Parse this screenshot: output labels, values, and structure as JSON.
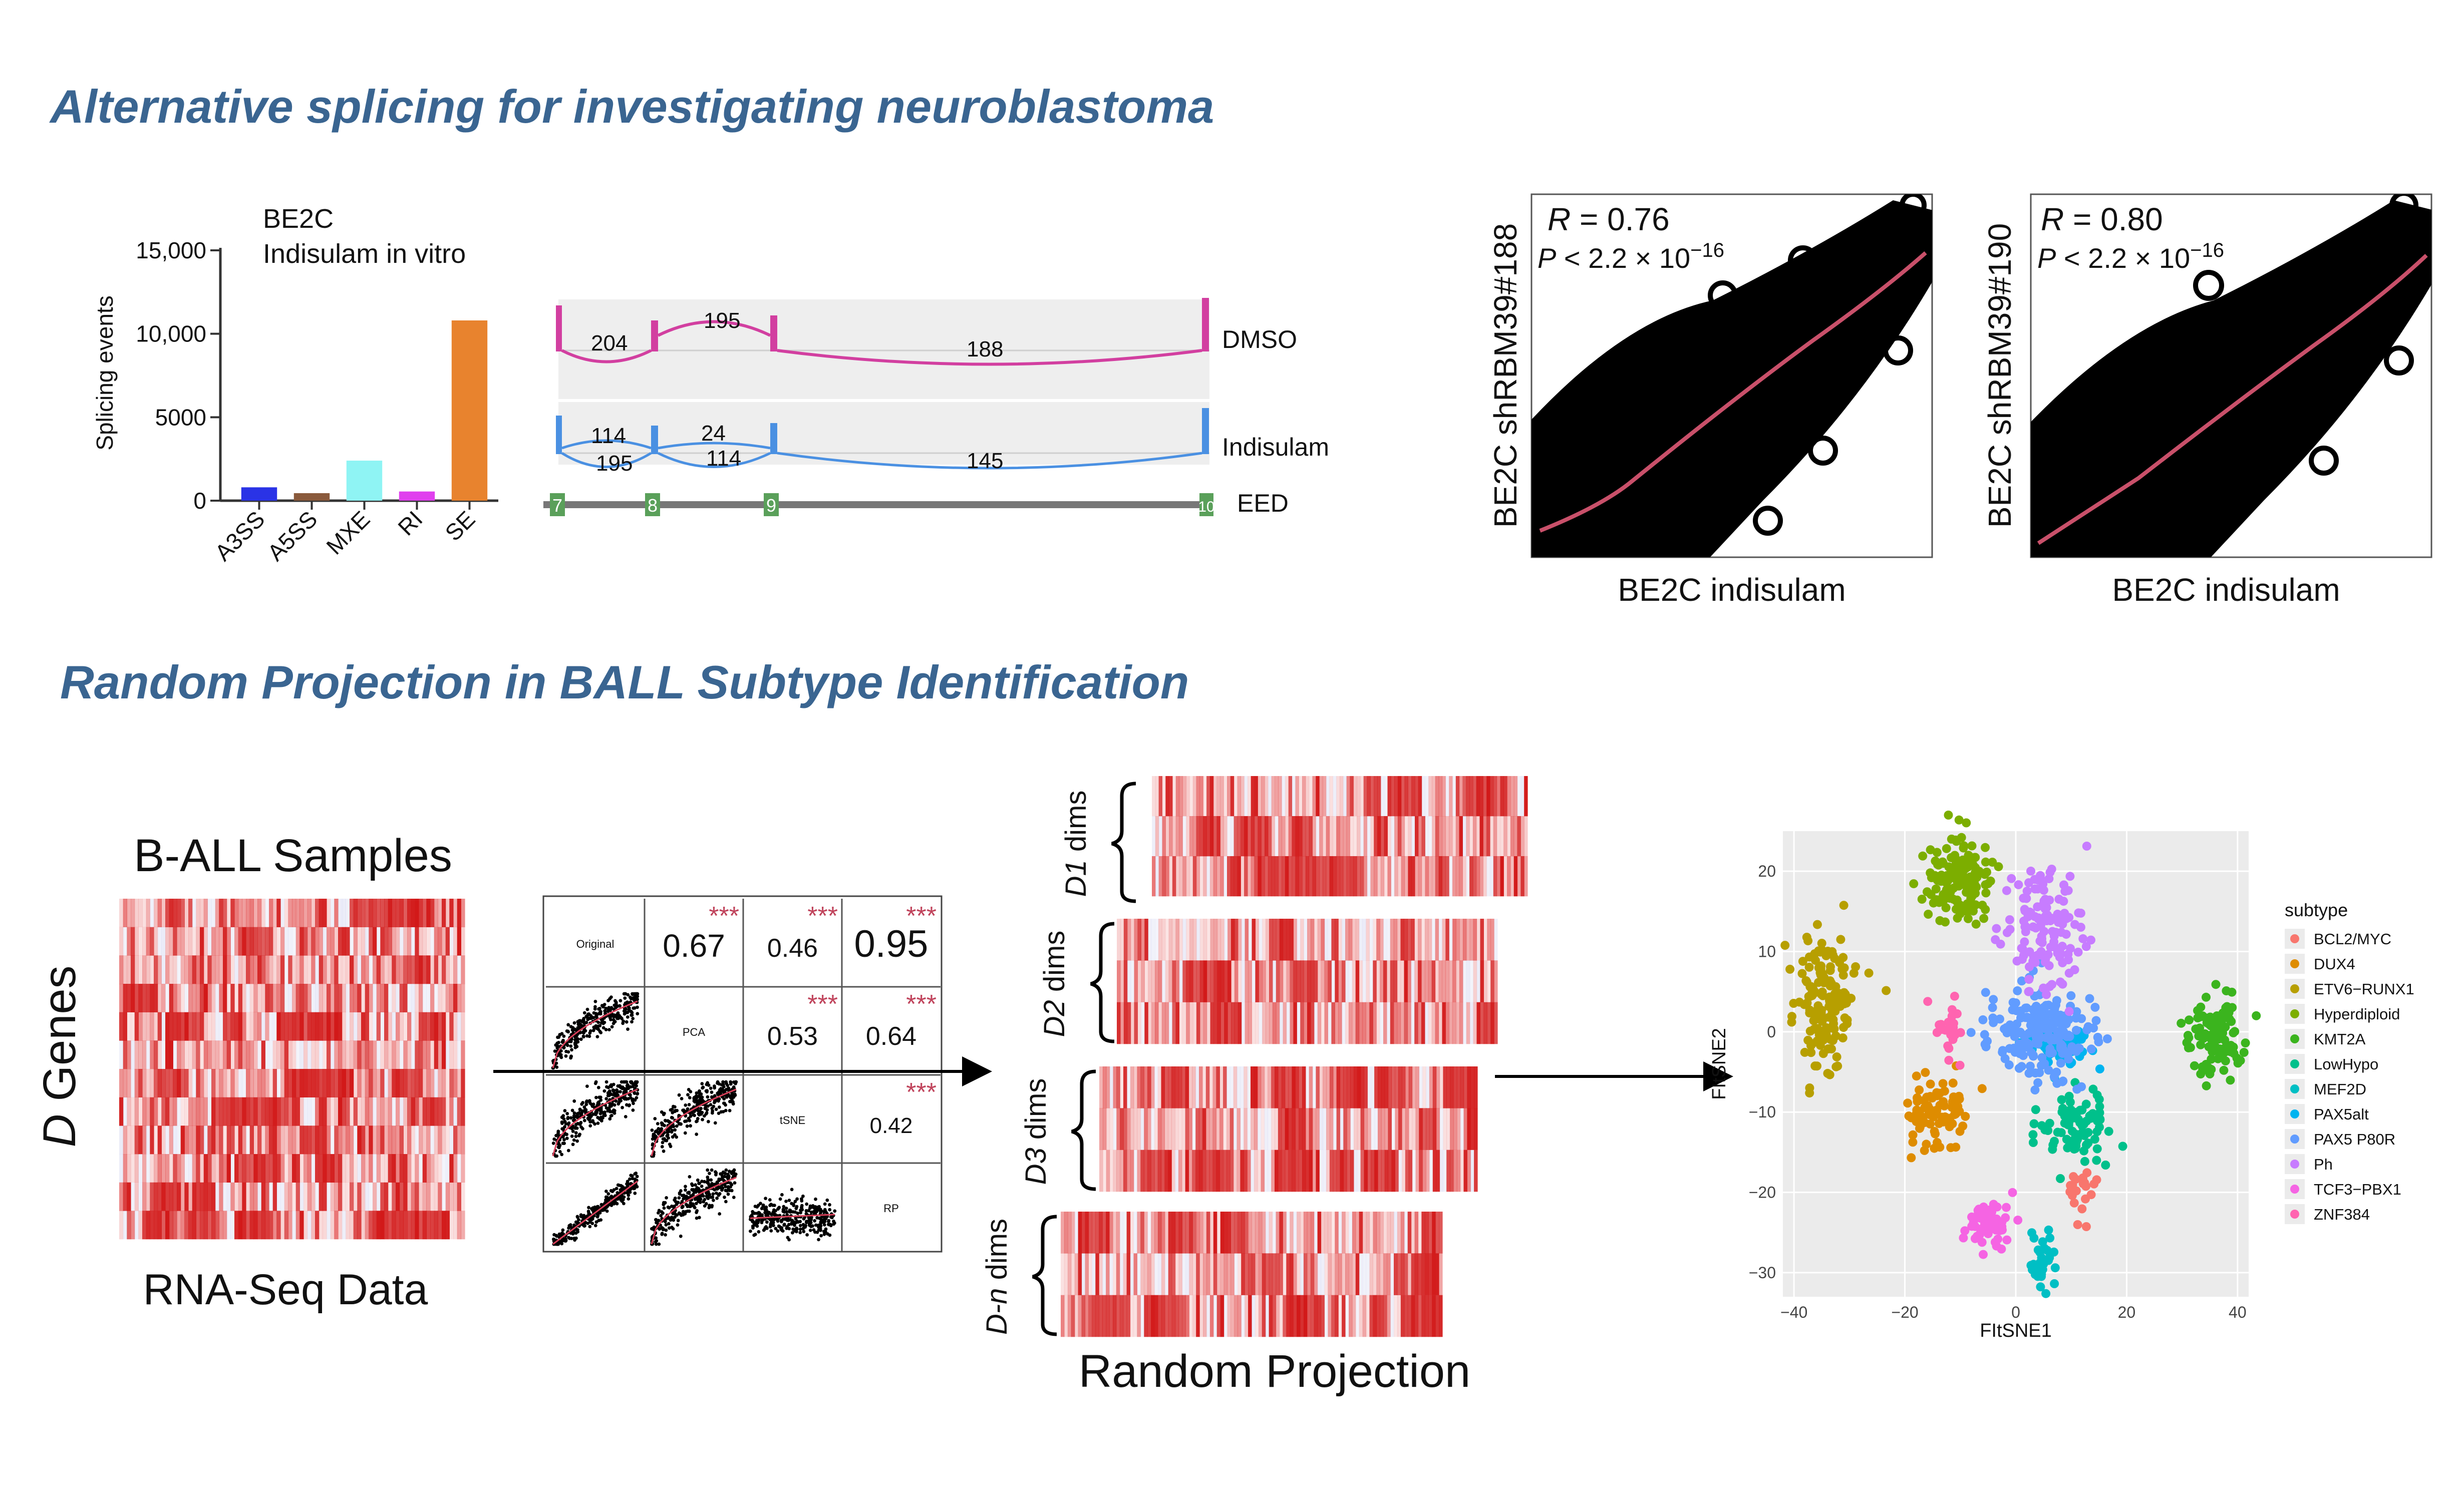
{
  "titles": {
    "section1": "Alternative splicing for investigating neuroblastoma",
    "section2": "Random Projection in BALL Subtype Identification"
  },
  "bar_chart": {
    "annotation_line1": "BE2C",
    "annotation_line2": "Indisulam in vitro",
    "chart_data": {
      "type": "bar",
      "categories": [
        "A3SS",
        "A5SS",
        "MXE",
        "RI",
        "SE"
      ],
      "values": [
        800,
        450,
        2400,
        550,
        10800
      ],
      "colors": [
        "#2a33e6",
        "#8a5a3c",
        "#8ff4f4",
        "#e040ee",
        "#e8832e"
      ],
      "ylabel": "Splicing events",
      "yticks": [
        0,
        5000,
        10000,
        15000
      ],
      "ytick_labels": [
        "0",
        "5000",
        "10,000",
        "15,000"
      ],
      "ylim": [
        0,
        15000
      ]
    }
  },
  "sashimi": {
    "tracks": [
      {
        "label": "DMSO",
        "color": "#d23fa0",
        "junctions": [
          "204",
          "195",
          "188"
        ]
      },
      {
        "label": "Indisulam",
        "color": "#4a90e2",
        "junctions": [
          "114",
          "24",
          "195",
          "114",
          "145"
        ]
      }
    ],
    "exons": [
      "7",
      "8",
      "9",
      "10"
    ],
    "gene": "EED"
  },
  "scatter_plots": [
    {
      "r_label": "R",
      "r_value": " = 0.76",
      "p_label": "P",
      "p_value": " < 2.2 × 10",
      "p_exp": "−16",
      "ylabel": "BE2C shRBM39#188",
      "xlabel": "BE2C indisulam"
    },
    {
      "r_label": "R",
      "r_value": " = 0.80",
      "p_label": "P",
      "p_value": " < 2.2 × 10",
      "p_exp": "−16",
      "ylabel": "BE2C shRBM39#190",
      "xlabel": "BE2C indisulam"
    }
  ],
  "workflow": {
    "samples_title": "B-ALL Samples",
    "genes_label_italic": "D",
    "genes_label": " Genes",
    "rnaseq_label": "RNA-Seq Data",
    "random_projection_label": "Random Projection",
    "dims": [
      {
        "italic": "D1",
        "suffix": " dims"
      },
      {
        "italic": "D2",
        "suffix": " dims"
      },
      {
        "italic": "D3",
        "suffix": " dims"
      },
      {
        "italic": "D-n",
        "suffix": " dims"
      }
    ]
  },
  "pairs_matrix": {
    "labels": [
      "Original",
      "PCA",
      "tSNE",
      "RP"
    ],
    "correlations": [
      {
        "row": 0,
        "col": 1,
        "value": "0.67",
        "stars": "***"
      },
      {
        "row": 0,
        "col": 2,
        "value": "0.46",
        "stars": "***"
      },
      {
        "row": 0,
        "col": 3,
        "value": "0.95",
        "stars": "***"
      },
      {
        "row": 1,
        "col": 2,
        "value": "0.53",
        "stars": "***"
      },
      {
        "row": 1,
        "col": 3,
        "value": "0.64",
        "stars": "***"
      },
      {
        "row": 2,
        "col": 3,
        "value": "0.42",
        "stars": "***"
      }
    ]
  },
  "tsne": {
    "chart_data": {
      "type": "scatter",
      "xlabel": "FItSNE1",
      "ylabel": "FItSNE2",
      "xlim": [
        -42,
        42
      ],
      "ylim": [
        -33,
        25
      ],
      "xticks": [
        -40,
        -20,
        0,
        20,
        40
      ],
      "xtick_labels": [
        "−40",
        "−20",
        "0",
        "20",
        "40"
      ],
      "yticks": [
        -30,
        -20,
        -10,
        0,
        10,
        20
      ],
      "ytick_labels": [
        "−30",
        "−20",
        "−10",
        "0",
        "10",
        "20"
      ],
      "legend_title": "subtype",
      "legend_position": "right",
      "series": [
        {
          "name": "BCL2/MYC",
          "color": "#f8766d",
          "cx": 12,
          "cy": -20,
          "sx": 1.2,
          "sy": 2.0,
          "n": 20
        },
        {
          "name": "DUX4",
          "color": "#de8c00",
          "cx": -15,
          "cy": -10,
          "sx": 3.0,
          "sy": 2.0,
          "n": 80
        },
        {
          "name": "ETV6−RUNX1",
          "color": "#b79f00",
          "cx": -34,
          "cy": 3,
          "sx": 2.8,
          "sy": 4.5,
          "n": 150
        },
        {
          "name": "Hyperdiploid",
          "color": "#7cae00",
          "cx": -10,
          "cy": 19,
          "sx": 3.0,
          "sy": 2.8,
          "n": 160
        },
        {
          "name": "KMT2A",
          "color": "#3bb41e",
          "cx": 36,
          "cy": -0.5,
          "sx": 3.0,
          "sy": 2.5,
          "n": 100
        },
        {
          "name": "LowHypo",
          "color": "#00c08b",
          "cx": 11,
          "cy": -12,
          "sx": 3.5,
          "sy": 2.5,
          "n": 90
        },
        {
          "name": "MEF2D",
          "color": "#00bfc4",
          "cx": 5,
          "cy": -28.5,
          "sx": 1.2,
          "sy": 1.8,
          "n": 30
        },
        {
          "name": "PAX5alt",
          "color": "#00b4f0",
          "cx": 8,
          "cy": -1.5,
          "sx": 2.5,
          "sy": 1.6,
          "n": 60
        },
        {
          "name": "PAX5 P80R",
          "color": "#619cff",
          "cx": 4,
          "cy": 0,
          "sx": 4.5,
          "sy": 3.0,
          "n": 200
        },
        {
          "name": "Ph",
          "color": "#c77cff",
          "cx": 5,
          "cy": 13,
          "sx": 3.5,
          "sy": 3.5,
          "n": 130
        },
        {
          "name": "TCF3−PBX1",
          "color": "#f564e3",
          "cx": -5,
          "cy": -24,
          "sx": 2.0,
          "sy": 1.5,
          "n": 60
        },
        {
          "name": "ZNF384",
          "color": "#ff64b0",
          "cx": -12,
          "cy": 0,
          "sx": 1.2,
          "sy": 2.0,
          "n": 25
        }
      ]
    }
  }
}
